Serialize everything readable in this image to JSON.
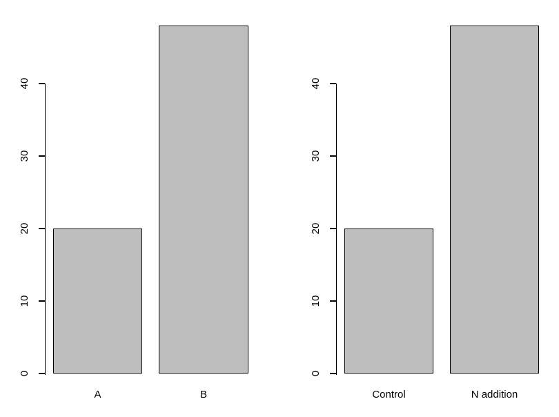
{
  "colors": {
    "background": "#ffffff",
    "bar_fill": "#bebebe",
    "bar_border": "#000000",
    "axis": "#000000",
    "text": "#000000"
  },
  "chart_data": [
    {
      "type": "bar",
      "title": "",
      "xlabel": "",
      "ylabel": "",
      "categories": [
        "A",
        "B"
      ],
      "values": [
        20,
        48
      ],
      "yticks": [
        0,
        10,
        20,
        30,
        40
      ],
      "axis_range": [
        0,
        40
      ],
      "ylim": [
        0,
        48
      ],
      "grid": false,
      "legend": null,
      "note": "second bar extends above top of drawn y-axis"
    },
    {
      "type": "bar",
      "title": "",
      "xlabel": "",
      "ylabel": "",
      "categories": [
        "Control",
        "N addition"
      ],
      "values": [
        20,
        48
      ],
      "yticks": [
        0,
        10,
        20,
        30,
        40
      ],
      "axis_range": [
        0,
        40
      ],
      "ylim": [
        0,
        48
      ],
      "grid": false,
      "legend": null,
      "note": "second bar extends above top of drawn y-axis"
    }
  ]
}
